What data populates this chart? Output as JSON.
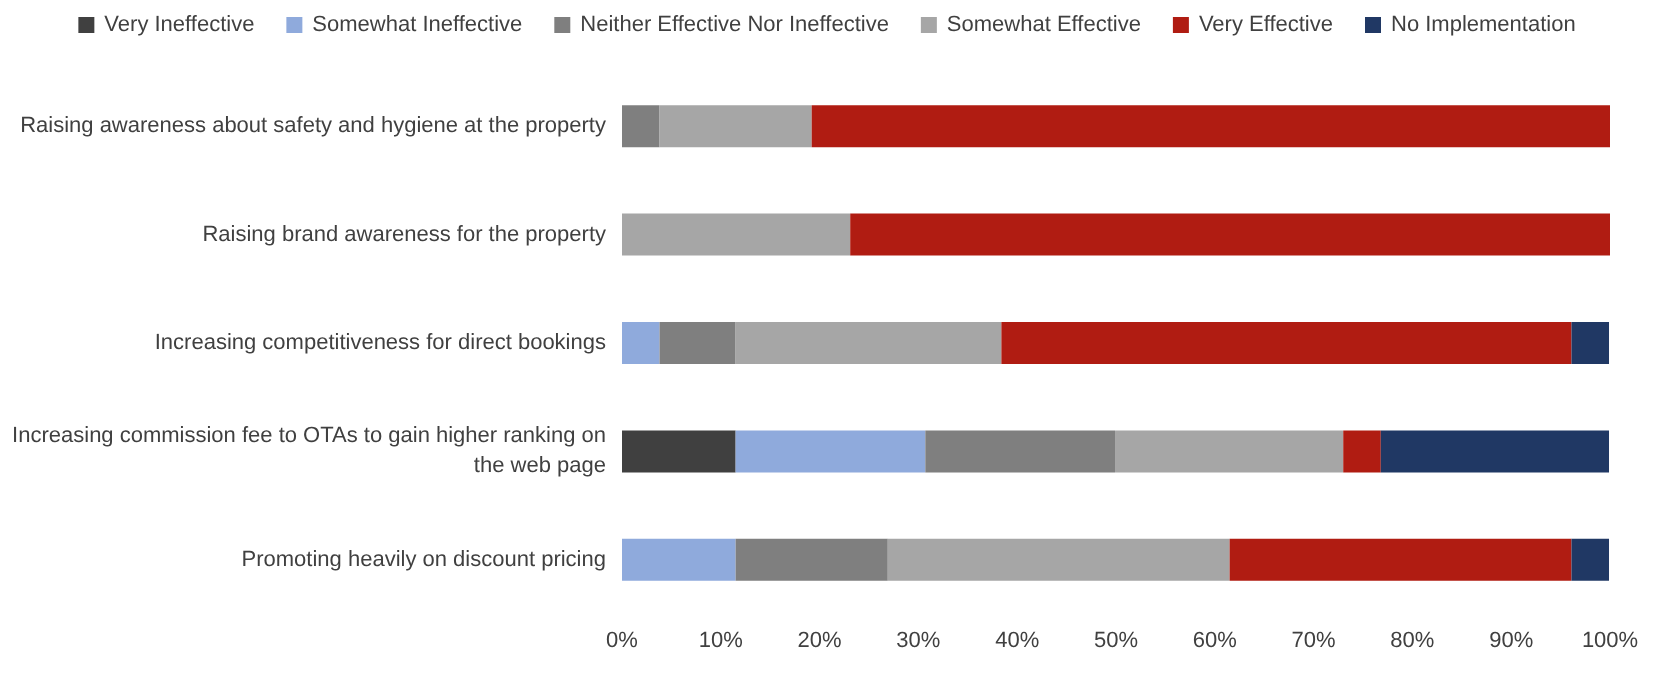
{
  "chart_data": {
    "type": "bar",
    "orientation": "horizontal",
    "stacked": true,
    "legend": "top",
    "grid": false,
    "categories": [
      "Raising awareness about safety and hygiene at the property",
      "Raising brand awareness for the property",
      "Increasing competitiveness for direct bookings",
      "Increasing commission fee to OTAs to gain higher ranking on the web page",
      "Promoting heavily on discount pricing"
    ],
    "xlim": [
      0,
      100
    ],
    "xticks": [
      {
        "value": 0,
        "label": "0%"
      },
      {
        "value": 10,
        "label": "10%"
      },
      {
        "value": 20,
        "label": "20%"
      },
      {
        "value": 30,
        "label": "30%"
      },
      {
        "value": 40,
        "label": "40%"
      },
      {
        "value": 50,
        "label": "50%"
      },
      {
        "value": 60,
        "label": "60%"
      },
      {
        "value": 70,
        "label": "70%"
      },
      {
        "value": 80,
        "label": "80%"
      },
      {
        "value": 90,
        "label": "90%"
      },
      {
        "value": 100,
        "label": "100%"
      }
    ],
    "series": [
      {
        "name": "Very Ineffective",
        "color": "#404040",
        "values": [
          0,
          0,
          0,
          11.5,
          0
        ]
      },
      {
        "name": "Somewhat Ineffective",
        "color": "#8faadc",
        "values": [
          0,
          0,
          3.8,
          19.2,
          11.5
        ]
      },
      {
        "name": "Neither Effective Nor Ineffective",
        "color": "#7f7f7f",
        "values": [
          3.8,
          0,
          7.7,
          19.2,
          15.4
        ]
      },
      {
        "name": "Somewhat Effective",
        "color": "#a6a6a6",
        "values": [
          15.4,
          23.1,
          26.9,
          23.1,
          34.6
        ]
      },
      {
        "name": "Very Effective",
        "color": "#b01c12",
        "values": [
          80.8,
          76.9,
          57.7,
          3.8,
          34.6
        ]
      },
      {
        "name": "No Implementation",
        "color": "#203864",
        "values": [
          0,
          0,
          3.8,
          23.1,
          3.8
        ]
      }
    ]
  }
}
